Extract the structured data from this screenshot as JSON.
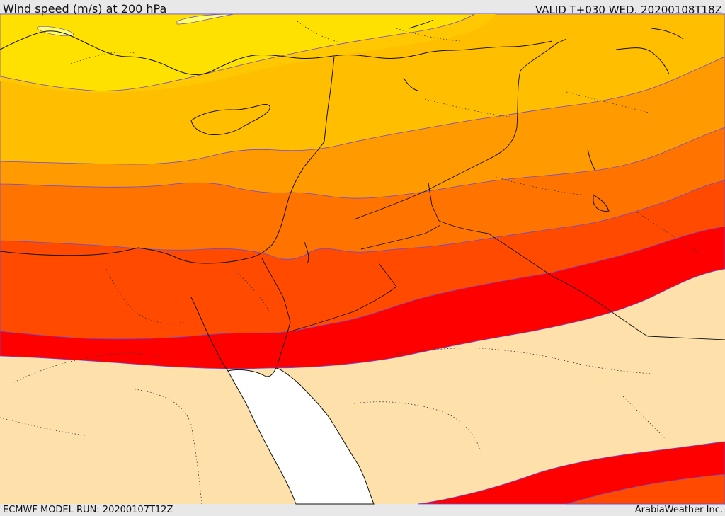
{
  "header": {
    "title": "Wind speed (m/s) at 200 hPa",
    "valid": "VALID T+030 WED. 20200108T18Z"
  },
  "footer": {
    "model_run": "ECMWF MODEL RUN: 20200107T12Z",
    "credit": "ArabiaWeather Inc."
  },
  "colors": {
    "land_bg": "#fde0aa",
    "sea": "#ffffff",
    "band_yellow": "#ffe100",
    "band_gold": "#ffbe00",
    "band_amber": "#ff9a00",
    "band_orange": "#ff7400",
    "band_red_orange": "#ff4a00",
    "band_red": "#fe0000",
    "jet_core": "#ffff6a"
  }
}
